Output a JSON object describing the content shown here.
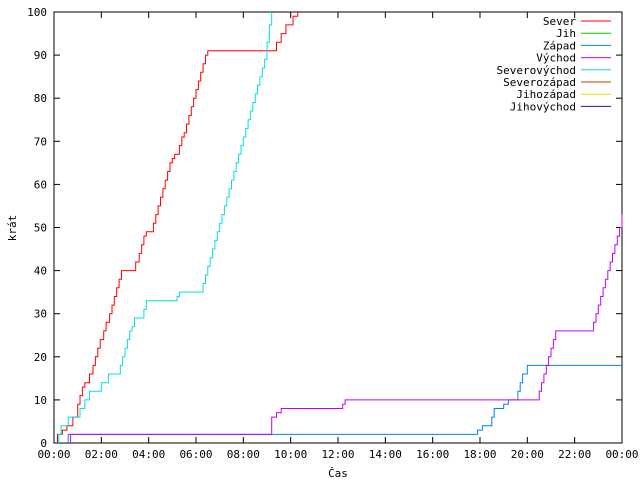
{
  "chart_data": {
    "type": "line",
    "xlabel": "Čas",
    "ylabel": "krát",
    "xlim": [
      0,
      24
    ],
    "ylim": [
      0,
      100
    ],
    "x_tick_labels": [
      "00:00",
      "02:00",
      "04:00",
      "06:00",
      "08:00",
      "10:00",
      "12:00",
      "14:00",
      "16:00",
      "18:00",
      "20:00",
      "22:00",
      "00:00"
    ],
    "y_tick_labels": [
      "0",
      "10",
      "20",
      "30",
      "40",
      "50",
      "60",
      "70",
      "80",
      "90",
      "100"
    ],
    "legend_position": "top-right",
    "grid": false,
    "series": [
      {
        "name": "Sever",
        "color": "#ff0000",
        "points": [
          [
            0.15,
            0
          ],
          [
            0.15,
            2
          ],
          [
            0.35,
            2
          ],
          [
            0.35,
            3
          ],
          [
            0.55,
            3
          ],
          [
            0.55,
            4
          ],
          [
            0.8,
            4
          ],
          [
            0.8,
            6
          ],
          [
            1.0,
            6
          ],
          [
            1.0,
            9
          ],
          [
            1.1,
            9
          ],
          [
            1.1,
            11
          ],
          [
            1.2,
            11
          ],
          [
            1.2,
            13
          ],
          [
            1.3,
            13
          ],
          [
            1.3,
            14
          ],
          [
            1.5,
            14
          ],
          [
            1.5,
            16
          ],
          [
            1.65,
            16
          ],
          [
            1.65,
            18
          ],
          [
            1.75,
            18
          ],
          [
            1.75,
            20
          ],
          [
            1.85,
            20
          ],
          [
            1.85,
            22
          ],
          [
            1.95,
            22
          ],
          [
            1.95,
            24
          ],
          [
            2.1,
            24
          ],
          [
            2.1,
            26
          ],
          [
            2.2,
            26
          ],
          [
            2.2,
            28
          ],
          [
            2.35,
            28
          ],
          [
            2.35,
            30
          ],
          [
            2.45,
            30
          ],
          [
            2.45,
            32
          ],
          [
            2.55,
            32
          ],
          [
            2.55,
            34
          ],
          [
            2.65,
            34
          ],
          [
            2.65,
            36
          ],
          [
            2.75,
            36
          ],
          [
            2.75,
            38
          ],
          [
            2.85,
            38
          ],
          [
            2.85,
            40
          ],
          [
            3.45,
            40
          ],
          [
            3.45,
            42
          ],
          [
            3.6,
            42
          ],
          [
            3.6,
            44
          ],
          [
            3.7,
            44
          ],
          [
            3.7,
            46
          ],
          [
            3.8,
            46
          ],
          [
            3.8,
            48
          ],
          [
            3.9,
            48
          ],
          [
            3.9,
            49
          ],
          [
            4.2,
            49
          ],
          [
            4.2,
            51
          ],
          [
            4.3,
            51
          ],
          [
            4.3,
            53
          ],
          [
            4.4,
            53
          ],
          [
            4.4,
            55
          ],
          [
            4.5,
            55
          ],
          [
            4.5,
            57
          ],
          [
            4.6,
            57
          ],
          [
            4.6,
            59
          ],
          [
            4.7,
            59
          ],
          [
            4.7,
            61
          ],
          [
            4.8,
            61
          ],
          [
            4.8,
            63
          ],
          [
            4.9,
            63
          ],
          [
            4.9,
            65
          ],
          [
            5.0,
            65
          ],
          [
            5.0,
            66
          ],
          [
            5.1,
            66
          ],
          [
            5.1,
            67
          ],
          [
            5.3,
            67
          ],
          [
            5.3,
            69
          ],
          [
            5.4,
            69
          ],
          [
            5.4,
            71
          ],
          [
            5.5,
            71
          ],
          [
            5.5,
            72
          ],
          [
            5.6,
            72
          ],
          [
            5.6,
            74
          ],
          [
            5.7,
            74
          ],
          [
            5.7,
            76
          ],
          [
            5.8,
            76
          ],
          [
            5.8,
            78
          ],
          [
            5.9,
            78
          ],
          [
            5.9,
            80
          ],
          [
            6.0,
            80
          ],
          [
            6.0,
            82
          ],
          [
            6.1,
            82
          ],
          [
            6.1,
            84
          ],
          [
            6.2,
            84
          ],
          [
            6.2,
            86
          ],
          [
            6.3,
            86
          ],
          [
            6.3,
            88
          ],
          [
            6.4,
            88
          ],
          [
            6.4,
            90
          ],
          [
            6.5,
            90
          ],
          [
            6.5,
            91
          ],
          [
            9.4,
            91
          ],
          [
            9.4,
            93
          ],
          [
            9.6,
            93
          ],
          [
            9.6,
            95
          ],
          [
            9.8,
            95
          ],
          [
            9.8,
            97
          ],
          [
            10.1,
            97
          ],
          [
            10.1,
            99
          ],
          [
            10.3,
            99
          ],
          [
            10.3,
            100
          ]
        ]
      },
      {
        "name": "Jih",
        "color": "#00c000",
        "points": []
      },
      {
        "name": "Západ",
        "color": "#0080ff",
        "points": [
          [
            0.6,
            0
          ],
          [
            0.6,
            2
          ],
          [
            17.9,
            2
          ],
          [
            17.9,
            3
          ],
          [
            18.1,
            3
          ],
          [
            18.1,
            4
          ],
          [
            18.5,
            4
          ],
          [
            18.5,
            6
          ],
          [
            18.6,
            6
          ],
          [
            18.6,
            8
          ],
          [
            19.0,
            8
          ],
          [
            19.0,
            9
          ],
          [
            19.2,
            9
          ],
          [
            19.2,
            10
          ],
          [
            19.6,
            10
          ],
          [
            19.6,
            12
          ],
          [
            19.7,
            12
          ],
          [
            19.7,
            14
          ],
          [
            19.8,
            14
          ],
          [
            19.8,
            16
          ],
          [
            20.0,
            16
          ],
          [
            20.0,
            18
          ],
          [
            24,
            18
          ]
        ]
      },
      {
        "name": "Východ",
        "color": "#c000ff",
        "points": [
          [
            0.7,
            0
          ],
          [
            0.7,
            2
          ],
          [
            9.2,
            2
          ],
          [
            9.2,
            6
          ],
          [
            9.4,
            6
          ],
          [
            9.4,
            7
          ],
          [
            9.6,
            7
          ],
          [
            9.6,
            8
          ],
          [
            12.2,
            8
          ],
          [
            12.2,
            9
          ],
          [
            12.3,
            9
          ],
          [
            12.3,
            10
          ],
          [
            20.5,
            10
          ],
          [
            20.5,
            12
          ],
          [
            20.6,
            12
          ],
          [
            20.6,
            14
          ],
          [
            20.7,
            14
          ],
          [
            20.7,
            16
          ],
          [
            20.8,
            16
          ],
          [
            20.8,
            18
          ],
          [
            20.9,
            18
          ],
          [
            20.9,
            20
          ],
          [
            21.0,
            20
          ],
          [
            21.0,
            22
          ],
          [
            21.1,
            22
          ],
          [
            21.1,
            24
          ],
          [
            21.2,
            24
          ],
          [
            21.2,
            26
          ],
          [
            22.8,
            26
          ],
          [
            22.8,
            28
          ],
          [
            22.9,
            28
          ],
          [
            22.9,
            30
          ],
          [
            23.0,
            30
          ],
          [
            23.0,
            32
          ],
          [
            23.1,
            32
          ],
          [
            23.1,
            34
          ],
          [
            23.2,
            34
          ],
          [
            23.2,
            36
          ],
          [
            23.3,
            36
          ],
          [
            23.3,
            38
          ],
          [
            23.4,
            38
          ],
          [
            23.4,
            40
          ],
          [
            23.5,
            40
          ],
          [
            23.5,
            42
          ],
          [
            23.6,
            42
          ],
          [
            23.6,
            44
          ],
          [
            23.7,
            44
          ],
          [
            23.7,
            46
          ],
          [
            23.8,
            46
          ],
          [
            23.8,
            48
          ],
          [
            23.9,
            48
          ],
          [
            23.9,
            50
          ],
          [
            24.0,
            50
          ],
          [
            24.0,
            53
          ]
        ]
      },
      {
        "name": "Severovýchod",
        "color": "#00e0e0",
        "points": [
          [
            0.2,
            0
          ],
          [
            0.2,
            2
          ],
          [
            0.3,
            2
          ],
          [
            0.3,
            4
          ],
          [
            0.6,
            4
          ],
          [
            0.6,
            6
          ],
          [
            1.1,
            6
          ],
          [
            1.1,
            8
          ],
          [
            1.3,
            8
          ],
          [
            1.3,
            10
          ],
          [
            1.5,
            10
          ],
          [
            1.5,
            12
          ],
          [
            2.0,
            12
          ],
          [
            2.0,
            14
          ],
          [
            2.3,
            14
          ],
          [
            2.3,
            16
          ],
          [
            2.8,
            16
          ],
          [
            2.8,
            18
          ],
          [
            2.9,
            18
          ],
          [
            2.9,
            20
          ],
          [
            3.0,
            20
          ],
          [
            3.0,
            22
          ],
          [
            3.1,
            22
          ],
          [
            3.1,
            24
          ],
          [
            3.2,
            24
          ],
          [
            3.2,
            26
          ],
          [
            3.3,
            26
          ],
          [
            3.3,
            27
          ],
          [
            3.4,
            27
          ],
          [
            3.4,
            29
          ],
          [
            3.8,
            29
          ],
          [
            3.8,
            31
          ],
          [
            3.9,
            31
          ],
          [
            3.9,
            33
          ],
          [
            5.2,
            33
          ],
          [
            5.2,
            34
          ],
          [
            5.3,
            34
          ],
          [
            5.3,
            35
          ],
          [
            6.3,
            35
          ],
          [
            6.3,
            37
          ],
          [
            6.4,
            37
          ],
          [
            6.4,
            39
          ],
          [
            6.5,
            39
          ],
          [
            6.5,
            41
          ],
          [
            6.6,
            41
          ],
          [
            6.6,
            43
          ],
          [
            6.7,
            43
          ],
          [
            6.7,
            45
          ],
          [
            6.8,
            45
          ],
          [
            6.8,
            47
          ],
          [
            6.9,
            47
          ],
          [
            6.9,
            49
          ],
          [
            7.0,
            49
          ],
          [
            7.0,
            51
          ],
          [
            7.1,
            51
          ],
          [
            7.1,
            53
          ],
          [
            7.2,
            53
          ],
          [
            7.2,
            55
          ],
          [
            7.3,
            55
          ],
          [
            7.3,
            57
          ],
          [
            7.4,
            57
          ],
          [
            7.4,
            59
          ],
          [
            7.5,
            59
          ],
          [
            7.5,
            61
          ],
          [
            7.6,
            61
          ],
          [
            7.6,
            63
          ],
          [
            7.7,
            63
          ],
          [
            7.7,
            65
          ],
          [
            7.8,
            65
          ],
          [
            7.8,
            67
          ],
          [
            7.9,
            67
          ],
          [
            7.9,
            69
          ],
          [
            8.0,
            69
          ],
          [
            8.0,
            71
          ],
          [
            8.1,
            71
          ],
          [
            8.1,
            73
          ],
          [
            8.2,
            73
          ],
          [
            8.2,
            75
          ],
          [
            8.3,
            75
          ],
          [
            8.3,
            77
          ],
          [
            8.4,
            77
          ],
          [
            8.4,
            79
          ],
          [
            8.5,
            79
          ],
          [
            8.5,
            81
          ],
          [
            8.6,
            81
          ],
          [
            8.6,
            83
          ],
          [
            8.7,
            83
          ],
          [
            8.7,
            85
          ],
          [
            8.8,
            85
          ],
          [
            8.8,
            87
          ],
          [
            8.9,
            87
          ],
          [
            8.9,
            89
          ],
          [
            9.0,
            89
          ],
          [
            9.0,
            93
          ],
          [
            9.1,
            93
          ],
          [
            9.1,
            97
          ],
          [
            9.2,
            97
          ],
          [
            9.2,
            100
          ]
        ]
      },
      {
        "name": "Severozápad",
        "color": "#c04000",
        "points": []
      },
      {
        "name": "Jihozápad",
        "color": "#e0e000",
        "points": []
      },
      {
        "name": "Jihovýchod",
        "color": "#4000c0",
        "points": []
      }
    ]
  }
}
